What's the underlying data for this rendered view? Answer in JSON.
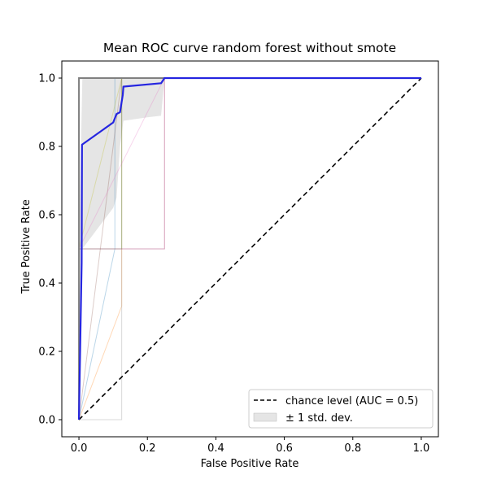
{
  "chart_data": {
    "type": "line",
    "title": "Mean ROC curve random forest without smote",
    "xlabel": "False Positive Rate",
    "ylabel": "True Positive Rate",
    "xlim": [
      -0.05,
      1.05
    ],
    "ylim": [
      -0.05,
      1.05
    ],
    "xticks": [
      "0.0",
      "0.2",
      "0.4",
      "0.6",
      "0.8",
      "1.0"
    ],
    "yticks": [
      "0.0",
      "0.2",
      "0.4",
      "0.6",
      "0.8",
      "1.0"
    ],
    "grid": false,
    "legend_position": "lower-right",
    "legend": [
      {
        "label": "chance level (AUC = 0.5)",
        "kind": "dashed-line",
        "color": "#000000"
      },
      {
        "label": "± 1 std. dev.",
        "kind": "band",
        "color": "#cccccc"
      }
    ],
    "series": [
      {
        "color": "#1f77b4",
        "opacity": 0.3,
        "width": 1,
        "x": [
          0.0,
          0.105,
          0.105,
          0.125,
          0.125,
          1.0
        ],
        "y": [
          0.0,
          0.5,
          1.0,
          1.0,
          1.0,
          1.0
        ]
      },
      {
        "color": "#ff7f0e",
        "opacity": 0.3,
        "width": 1,
        "x": [
          0.0,
          0.125,
          0.125,
          0.125,
          1.0
        ],
        "y": [
          0.0,
          0.333,
          0.5,
          1.0,
          1.0
        ]
      },
      {
        "color": "#2ca02c",
        "opacity": 0.3,
        "width": 1,
        "x": [
          0.0,
          0.0,
          0.125,
          0.125,
          1.0
        ],
        "y": [
          0.0,
          0.5,
          0.5,
          1.0,
          1.0
        ]
      },
      {
        "color": "#d62728",
        "opacity": 0.3,
        "width": 1,
        "x": [
          0.0,
          0.0,
          0.25,
          0.25,
          1.0
        ],
        "y": [
          0.0,
          0.5,
          0.5,
          1.0,
          1.0
        ]
      },
      {
        "color": "#9467bd",
        "opacity": 0.3,
        "width": 1,
        "x": [
          0.0,
          0.0,
          0.25,
          0.25,
          1.0
        ],
        "y": [
          0.0,
          0.5,
          0.5,
          1.0,
          1.0
        ]
      },
      {
        "color": "#8c564b",
        "opacity": 0.3,
        "width": 1,
        "x": [
          0.0,
          0.125,
          0.125,
          1.0
        ],
        "y": [
          0.0,
          1.0,
          1.0,
          1.0
        ]
      },
      {
        "color": "#e377c2",
        "opacity": 0.3,
        "width": 1,
        "x": [
          0.0,
          0.0,
          0.25,
          1.0
        ],
        "y": [
          0.0,
          0.5,
          1.0,
          1.0
        ]
      },
      {
        "color": "#7f7f7f",
        "opacity": 0.3,
        "width": 1,
        "x": [
          0.0,
          0.0,
          0.125,
          0.125,
          1.0
        ],
        "y": [
          0.0,
          0.0,
          0.0,
          1.0,
          1.0
        ]
      },
      {
        "color": "#bcbd22",
        "opacity": 0.3,
        "width": 1,
        "x": [
          0.0,
          0.0,
          0.125,
          1.0
        ],
        "y": [
          0.0,
          0.5,
          1.0,
          1.0
        ]
      },
      {
        "color": "#17becf",
        "opacity": 0.3,
        "width": 1,
        "x": [
          0.0,
          0.0,
          0.005,
          1.0
        ],
        "y": [
          0.0,
          1.0,
          1.0,
          1.0
        ]
      },
      {
        "color": "#808080",
        "opacity": 1.0,
        "width": 2,
        "x": [
          0.0,
          0.0,
          1.0
        ],
        "y": [
          0.0,
          1.0,
          1.0
        ]
      }
    ],
    "mean_roc": {
      "color": "#2525e0",
      "x": [
        0.0,
        0.008,
        0.009,
        0.1,
        0.11,
        0.12,
        0.128,
        0.13,
        0.24,
        0.25,
        1.0
      ],
      "y": [
        0.0,
        0.46,
        0.805,
        0.87,
        0.895,
        0.9,
        0.95,
        0.975,
        0.985,
        1.0,
        1.0
      ]
    },
    "std_band": {
      "color": "#cccccc",
      "x": [
        0.0,
        0.01,
        0.1,
        0.11,
        0.12,
        0.13,
        0.2,
        0.24,
        0.25,
        1.0
      ],
      "upper": [
        0.5,
        1.0,
        1.0,
        1.0,
        1.0,
        1.0,
        1.0,
        1.0,
        1.0,
        1.0
      ],
      "lower": [
        0.0,
        0.5,
        0.62,
        0.65,
        0.8,
        0.875,
        0.885,
        0.89,
        1.0,
        1.0
      ]
    },
    "chance_line": {
      "x": [
        0.0,
        1.0
      ],
      "y": [
        0.0,
        1.0
      ]
    }
  }
}
